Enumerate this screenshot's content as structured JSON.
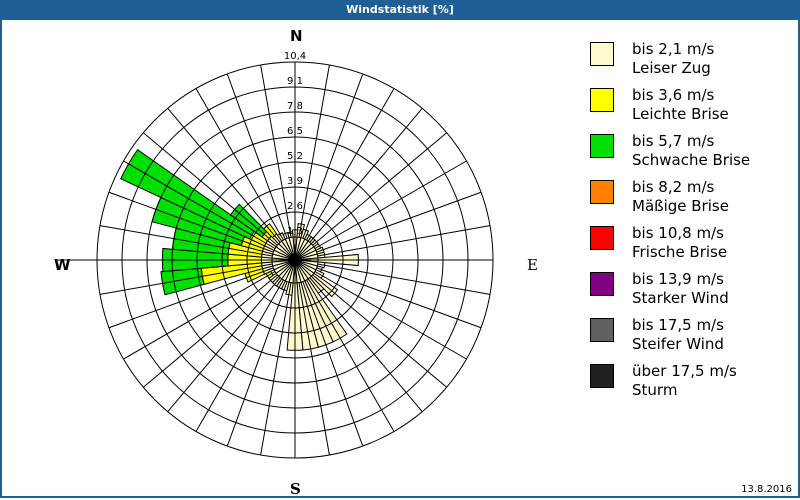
{
  "title": "Windstatistik [%]",
  "compass": {
    "n": "N",
    "e": "E",
    "s": "S",
    "w": "W"
  },
  "ring_labels": [
    "1,3",
    "2,6",
    "3,9",
    "5,2",
    "6,5",
    "7,8",
    "9,1",
    "10,4"
  ],
  "legend": [
    {
      "range": "bis 2,1 m/s",
      "name": "Leiser Zug",
      "color": "#fffacd"
    },
    {
      "range": "bis 3,6 m/s",
      "name": "Leichte Brise",
      "color": "#ffff00"
    },
    {
      "range": "bis 5,7 m/s",
      "name": "Schwache Brise",
      "color": "#00e000"
    },
    {
      "range": "bis 8,2 m/s",
      "name": "Mäßige Brise",
      "color": "#ff8000"
    },
    {
      "range": "bis 10,8 m/s",
      "name": "Frische Brise",
      "color": "#ff0000"
    },
    {
      "range": "bis 13,9 m/s",
      "name": "Starker Wind",
      "color": "#800080"
    },
    {
      "range": "bis 17,5 m/s",
      "name": "Steifer Wind",
      "color": "#606060"
    },
    {
      "range": "über 17,5 m/s",
      "name": "Sturm",
      "color": "#202020"
    }
  ],
  "date": "13.8.2016",
  "chart_data": {
    "type": "wind-rose",
    "title": "Windstatistik [%]",
    "unit": "%",
    "rmax": 10.4,
    "ring_ticks": [
      1.3,
      2.6,
      3.9,
      5.2,
      6.5,
      7.8,
      9.1,
      10.4
    ],
    "directions_deg": [
      0,
      10,
      20,
      30,
      40,
      50,
      60,
      70,
      80,
      90,
      100,
      110,
      120,
      130,
      140,
      150,
      160,
      170,
      180,
      190,
      200,
      210,
      220,
      230,
      240,
      250,
      260,
      270,
      280,
      290,
      300,
      310,
      320,
      330,
      340,
      350
    ],
    "series": [
      {
        "name": "bis 2,1 m/s",
        "values": [
          0.4,
          2.0,
          0.5,
          0.3,
          0.3,
          0.3,
          0.3,
          0.4,
          0.4,
          3.4,
          0.4,
          0.3,
          0.5,
          2.8,
          1.0,
          4.8,
          4.8,
          4.8,
          4.8,
          0.7,
          0.5,
          0.5,
          0.5,
          0.5,
          0.5,
          0.6,
          0.6,
          0.6,
          0.6,
          0.6,
          0.6,
          0.6,
          0.5,
          0.4,
          0.3,
          0.3
        ]
      },
      {
        "name": "bis 3,6 m/s",
        "values": [
          0,
          0,
          0,
          0,
          0,
          0,
          0,
          0,
          0,
          0,
          0,
          0,
          0,
          0,
          0,
          0,
          0,
          0,
          0,
          0,
          0,
          0,
          0,
          0,
          1.0,
          2.2,
          4.4,
          3.0,
          3.0,
          2.4,
          2.1,
          1.6,
          0.7,
          0,
          0,
          0
        ]
      },
      {
        "name": "bis 5,7 m/s",
        "values": [
          0,
          0,
          0,
          0,
          0,
          0,
          0,
          0,
          0,
          0,
          0,
          0,
          0,
          0,
          0,
          0,
          0,
          0,
          0,
          0,
          0,
          0,
          0,
          0,
          0,
          0,
          2.1,
          3.4,
          2.9,
          4.8,
          7.4,
          2.0,
          0,
          0,
          0,
          0
        ]
      },
      {
        "name": "bis 8,2 m/s",
        "values": []
      },
      {
        "name": "bis 10,8 m/s",
        "values": []
      },
      {
        "name": "bis 13,9 m/s",
        "values": []
      },
      {
        "name": "bis 17,5 m/s",
        "values": []
      },
      {
        "name": "über 17,5 m/s",
        "values": []
      }
    ]
  }
}
